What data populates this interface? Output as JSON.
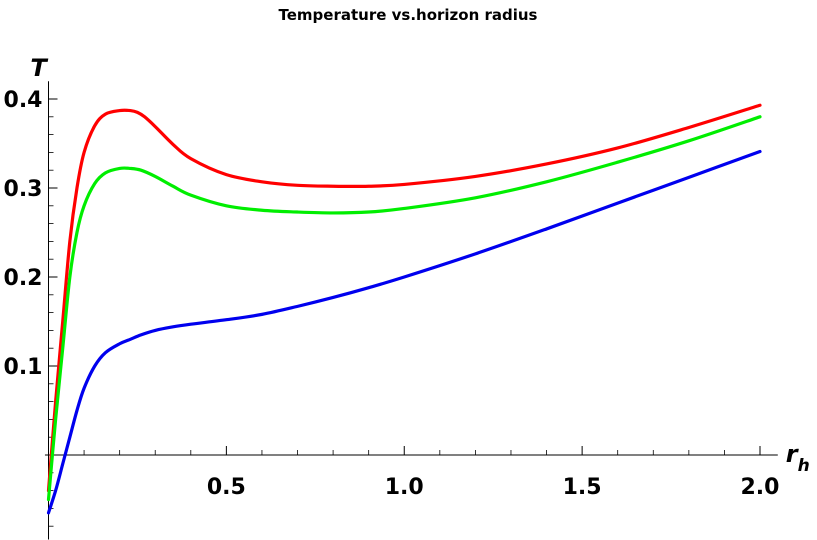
{
  "chart_data": {
    "type": "line",
    "title": "Temperature vs.horizon radius",
    "xlabel": "r",
    "xlabel_subscript": "h",
    "ylabel": "T",
    "xlim": [
      -0.01,
      2.05
    ],
    "ylim": [
      -0.095,
      0.42
    ],
    "x_ticks": [
      0.5,
      1.0,
      1.5,
      2.0
    ],
    "x_tick_labels": [
      "0.5",
      "1.0",
      "1.5",
      "2.0"
    ],
    "y_ticks": [
      0.1,
      0.2,
      0.3,
      0.4
    ],
    "y_tick_labels": [
      "0.1",
      "0.2",
      "0.3",
      "0.4"
    ],
    "grid": false,
    "legend": "none",
    "series": [
      {
        "color": "#ff0000",
        "x": [
          0.0,
          0.02,
          0.04,
          0.06,
          0.08,
          0.1,
          0.13,
          0.16,
          0.2,
          0.23,
          0.25,
          0.27,
          0.3,
          0.35,
          0.4,
          0.5,
          0.6,
          0.7,
          0.8,
          0.9,
          1.0,
          1.2,
          1.4,
          1.6,
          1.8,
          2.0
        ],
        "y": [
          -0.04,
          0.06,
          0.15,
          0.24,
          0.3,
          0.34,
          0.37,
          0.383,
          0.387,
          0.387,
          0.385,
          0.38,
          0.369,
          0.349,
          0.333,
          0.315,
          0.307,
          0.303,
          0.302,
          0.302,
          0.304,
          0.313,
          0.327,
          0.345,
          0.368,
          0.393
        ]
      },
      {
        "color": "#00ee00",
        "x": [
          0.0,
          0.02,
          0.04,
          0.06,
          0.08,
          0.1,
          0.13,
          0.16,
          0.2,
          0.23,
          0.26,
          0.3,
          0.35,
          0.4,
          0.5,
          0.6,
          0.7,
          0.8,
          0.9,
          1.0,
          1.2,
          1.4,
          1.6,
          1.8,
          2.0
        ],
        "y": [
          -0.05,
          0.04,
          0.12,
          0.2,
          0.25,
          0.28,
          0.305,
          0.317,
          0.322,
          0.322,
          0.32,
          0.313,
          0.302,
          0.292,
          0.28,
          0.275,
          0.273,
          0.272,
          0.273,
          0.277,
          0.289,
          0.307,
          0.329,
          0.353,
          0.38
        ]
      },
      {
        "color": "#0000ee",
        "x": [
          0.0,
          0.02,
          0.04,
          0.06,
          0.08,
          0.1,
          0.13,
          0.16,
          0.2,
          0.23,
          0.26,
          0.3,
          0.35,
          0.4,
          0.5,
          0.6,
          0.7,
          0.8,
          0.9,
          1.0,
          1.2,
          1.4,
          1.6,
          1.8,
          2.0
        ],
        "y": [
          -0.065,
          -0.04,
          -0.01,
          0.02,
          0.05,
          0.075,
          0.1,
          0.115,
          0.125,
          0.13,
          0.135,
          0.14,
          0.144,
          0.147,
          0.152,
          0.158,
          0.167,
          0.177,
          0.188,
          0.2,
          0.226,
          0.254,
          0.283,
          0.312,
          0.341
        ]
      }
    ]
  }
}
